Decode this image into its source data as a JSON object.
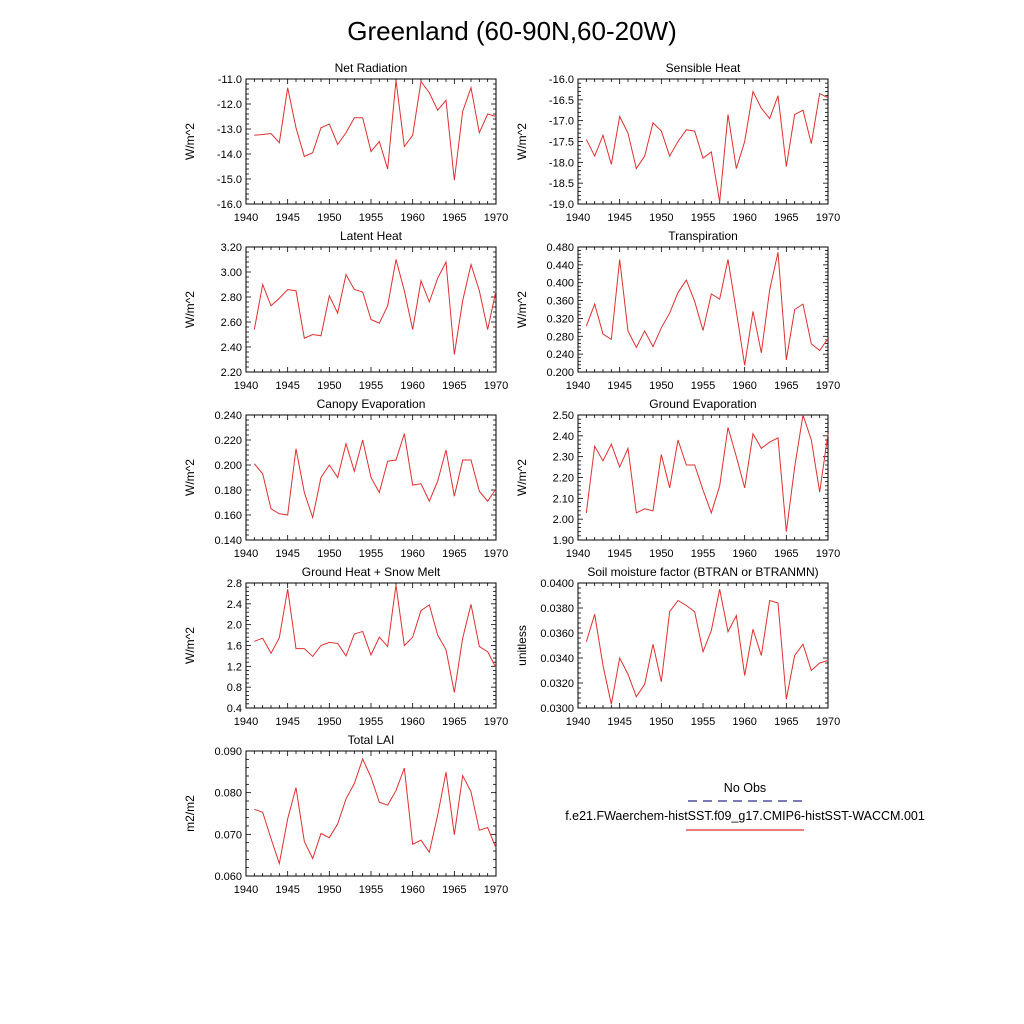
{
  "figure": {
    "title": "Greenland (60-90N,60-20W)"
  },
  "legend": {
    "entries": [
      {
        "label": "No Obs",
        "color": "#2a2a8f",
        "dash": "dashed"
      },
      {
        "label": "f.e21.FWaerchem-histSST.f09_g17.CMIP6-histSST-WACCM.001",
        "color": "#e03030",
        "dash": "solid"
      }
    ]
  },
  "chart_data": [
    {
      "type": "line",
      "title": "Net Radiation",
      "ylabel": "W/m^2",
      "xlim": [
        1940,
        1970
      ],
      "ylim": [
        -16.0,
        -11.0
      ],
      "xticks": [
        "1940",
        "1945",
        "1950",
        "1955",
        "1960",
        "1965",
        "1970"
      ],
      "yticks": [
        "-16.0",
        "-15.0",
        "-14.0",
        "-13.0",
        "-12.0",
        "-11.0"
      ],
      "x": [
        1941,
        1942,
        1943,
        1944,
        1945,
        1946,
        1947,
        1948,
        1949,
        1950,
        1951,
        1952,
        1953,
        1954,
        1955,
        1956,
        1957,
        1958,
        1959,
        1960,
        1961,
        1962,
        1963,
        1964,
        1965,
        1966,
        1967,
        1968,
        1969,
        1970
      ],
      "series": [
        {
          "color": "#e03030",
          "values": [
            -13.25,
            -13.22,
            -13.18,
            -13.55,
            -11.35,
            -12.95,
            -14.1,
            -13.95,
            -12.95,
            -12.8,
            -13.62,
            -13.15,
            -12.55,
            -12.55,
            -13.9,
            -13.5,
            -14.6,
            -11.05,
            -13.7,
            -13.25,
            -11.1,
            -11.55,
            -12.25,
            -11.85,
            -15.05,
            -12.3,
            -11.35,
            -13.15,
            -12.4,
            -12.5
          ]
        }
      ]
    },
    {
      "type": "line",
      "title": "Sensible Heat",
      "ylabel": "W/m^2",
      "xlim": [
        1940,
        1970
      ],
      "ylim": [
        -19.0,
        -16.0
      ],
      "xticks": [
        "1940",
        "1945",
        "1950",
        "1955",
        "1960",
        "1965",
        "1970"
      ],
      "yticks": [
        "-19.0",
        "-18.5",
        "-18.0",
        "-17.5",
        "-17.0",
        "-16.5",
        "-16.0"
      ],
      "x": [
        1941,
        1942,
        1943,
        1944,
        1945,
        1946,
        1947,
        1948,
        1949,
        1950,
        1951,
        1952,
        1953,
        1954,
        1955,
        1956,
        1957,
        1958,
        1959,
        1960,
        1961,
        1962,
        1963,
        1964,
        1965,
        1966,
        1967,
        1968,
        1969,
        1970
      ],
      "series": [
        {
          "color": "#e03030",
          "values": [
            -17.45,
            -17.85,
            -17.35,
            -18.05,
            -16.9,
            -17.3,
            -18.15,
            -17.85,
            -17.05,
            -17.25,
            -17.85,
            -17.5,
            -17.22,
            -17.25,
            -17.9,
            -17.75,
            -18.95,
            -16.85,
            -18.15,
            -17.5,
            -16.3,
            -16.7,
            -16.95,
            -16.4,
            -18.1,
            -16.85,
            -16.75,
            -17.55,
            -16.35,
            -16.45
          ]
        }
      ]
    },
    {
      "type": "line",
      "title": "Latent Heat",
      "ylabel": "W/m^2",
      "xlim": [
        1940,
        1970
      ],
      "ylim": [
        2.2,
        3.2
      ],
      "xticks": [
        "1940",
        "1945",
        "1950",
        "1955",
        "1960",
        "1965",
        "1970"
      ],
      "yticks": [
        "2.20",
        "2.40",
        "2.60",
        "2.80",
        "3.00",
        "3.20"
      ],
      "x": [
        1941,
        1942,
        1943,
        1944,
        1945,
        1946,
        1947,
        1948,
        1949,
        1950,
        1951,
        1952,
        1953,
        1954,
        1955,
        1956,
        1957,
        1958,
        1959,
        1960,
        1961,
        1962,
        1963,
        1964,
        1965,
        1966,
        1967,
        1968,
        1969,
        1970
      ],
      "series": [
        {
          "color": "#e03030",
          "values": [
            2.54,
            2.9,
            2.73,
            2.79,
            2.86,
            2.85,
            2.47,
            2.5,
            2.49,
            2.81,
            2.67,
            2.98,
            2.86,
            2.84,
            2.62,
            2.59,
            2.73,
            3.1,
            2.85,
            2.54,
            2.93,
            2.76,
            2.95,
            3.08,
            2.34,
            2.77,
            3.06,
            2.85,
            2.54,
            2.85
          ]
        }
      ]
    },
    {
      "type": "line",
      "title": "Transpiration",
      "ylabel": "W/m^2",
      "xlim": [
        1940,
        1970
      ],
      "ylim": [
        0.2,
        0.48
      ],
      "xticks": [
        "1940",
        "1945",
        "1950",
        "1955",
        "1960",
        "1965",
        "1970"
      ],
      "yticks": [
        "0.200",
        "0.240",
        "0.280",
        "0.320",
        "0.360",
        "0.400",
        "0.440",
        "0.480"
      ],
      "x": [
        1941,
        1942,
        1943,
        1944,
        1945,
        1946,
        1947,
        1948,
        1949,
        1950,
        1951,
        1952,
        1953,
        1954,
        1955,
        1956,
        1957,
        1958,
        1959,
        1960,
        1961,
        1962,
        1963,
        1964,
        1965,
        1966,
        1967,
        1968,
        1969,
        1970
      ],
      "series": [
        {
          "color": "#e03030",
          "values": [
            0.303,
            0.352,
            0.285,
            0.273,
            0.452,
            0.292,
            0.255,
            0.292,
            0.257,
            0.299,
            0.332,
            0.378,
            0.406,
            0.358,
            0.293,
            0.375,
            0.363,
            0.452,
            0.336,
            0.215,
            0.336,
            0.243,
            0.384,
            0.468,
            0.227,
            0.34,
            0.352,
            0.263,
            0.248,
            0.275
          ]
        }
      ]
    },
    {
      "type": "line",
      "title": "Canopy Evaporation",
      "ylabel": "W/m^2",
      "xlim": [
        1940,
        1970
      ],
      "ylim": [
        0.14,
        0.24
      ],
      "xticks": [
        "1940",
        "1945",
        "1950",
        "1955",
        "1960",
        "1965",
        "1970"
      ],
      "yticks": [
        "0.140",
        "0.160",
        "0.180",
        "0.200",
        "0.220",
        "0.240"
      ],
      "x": [
        1941,
        1942,
        1943,
        1944,
        1945,
        1946,
        1947,
        1948,
        1949,
        1950,
        1951,
        1952,
        1953,
        1954,
        1955,
        1956,
        1957,
        1958,
        1959,
        1960,
        1961,
        1962,
        1963,
        1964,
        1965,
        1966,
        1967,
        1968,
        1969,
        1970
      ],
      "series": [
        {
          "color": "#e03030",
          "values": [
            0.201,
            0.193,
            0.165,
            0.161,
            0.16,
            0.213,
            0.178,
            0.158,
            0.19,
            0.2,
            0.19,
            0.217,
            0.195,
            0.22,
            0.19,
            0.178,
            0.203,
            0.204,
            0.225,
            0.184,
            0.185,
            0.171,
            0.187,
            0.212,
            0.175,
            0.204,
            0.204,
            0.179,
            0.171,
            0.181
          ]
        }
      ]
    },
    {
      "type": "line",
      "title": "Ground Evaporation",
      "ylabel": "W/m^2",
      "xlim": [
        1940,
        1970
      ],
      "ylim": [
        1.9,
        2.5
      ],
      "xticks": [
        "1940",
        "1945",
        "1950",
        "1955",
        "1960",
        "1965",
        "1970"
      ],
      "yticks": [
        "1.90",
        "2.00",
        "2.10",
        "2.20",
        "2.30",
        "2.40",
        "2.50"
      ],
      "x": [
        1941,
        1942,
        1943,
        1944,
        1945,
        1946,
        1947,
        1948,
        1949,
        1950,
        1951,
        1952,
        1953,
        1954,
        1955,
        1956,
        1957,
        1958,
        1959,
        1960,
        1961,
        1962,
        1963,
        1964,
        1965,
        1966,
        1967,
        1968,
        1969,
        1970
      ],
      "series": [
        {
          "color": "#e03030",
          "values": [
            2.03,
            2.35,
            2.28,
            2.36,
            2.25,
            2.34,
            2.03,
            2.05,
            2.04,
            2.31,
            2.15,
            2.38,
            2.26,
            2.26,
            2.14,
            2.03,
            2.16,
            2.44,
            2.3,
            2.15,
            2.41,
            2.34,
            2.37,
            2.39,
            1.94,
            2.25,
            2.5,
            2.38,
            2.13,
            2.41
          ]
        }
      ]
    },
    {
      "type": "line",
      "title": "Ground Heat + Snow Melt",
      "ylabel": "W/m^2",
      "xlim": [
        1940,
        1970
      ],
      "ylim": [
        0.4,
        2.8
      ],
      "xticks": [
        "1940",
        "1945",
        "1950",
        "1955",
        "1960",
        "1965",
        "1970"
      ],
      "yticks": [
        "0.4",
        "0.8",
        "1.2",
        "1.6",
        "2.0",
        "2.4",
        "2.8"
      ],
      "x": [
        1941,
        1942,
        1943,
        1944,
        1945,
        1946,
        1947,
        1948,
        1949,
        1950,
        1951,
        1952,
        1953,
        1954,
        1955,
        1956,
        1957,
        1958,
        1959,
        1960,
        1961,
        1962,
        1963,
        1964,
        1965,
        1966,
        1967,
        1968,
        1969,
        1970
      ],
      "series": [
        {
          "color": "#e03030",
          "values": [
            1.68,
            1.74,
            1.45,
            1.75,
            2.68,
            1.54,
            1.54,
            1.39,
            1.6,
            1.66,
            1.64,
            1.4,
            1.82,
            1.87,
            1.42,
            1.76,
            1.58,
            2.76,
            1.6,
            1.76,
            2.27,
            2.38,
            1.8,
            1.52,
            0.7,
            1.74,
            2.39,
            1.58,
            1.48,
            1.17
          ]
        }
      ]
    },
    {
      "type": "line",
      "title": "Soil moisture factor (BTRAN or BTRANMN)",
      "ylabel": "unitless",
      "xlim": [
        1940,
        1970
      ],
      "ylim": [
        0.03,
        0.04
      ],
      "xticks": [
        "1940",
        "1945",
        "1950",
        "1955",
        "1960",
        "1965",
        "1970"
      ],
      "yticks": [
        "0.0300",
        "0.0320",
        "0.0340",
        "0.0360",
        "0.0380",
        "0.0400"
      ],
      "x": [
        1941,
        1942,
        1943,
        1944,
        1945,
        1946,
        1947,
        1948,
        1949,
        1950,
        1951,
        1952,
        1953,
        1954,
        1955,
        1956,
        1957,
        1958,
        1959,
        1960,
        1961,
        1962,
        1963,
        1964,
        1965,
        1966,
        1967,
        1968,
        1969,
        1970
      ],
      "series": [
        {
          "color": "#e03030",
          "values": [
            0.0353,
            0.0375,
            0.0334,
            0.0303,
            0.034,
            0.0327,
            0.0309,
            0.0319,
            0.0351,
            0.0321,
            0.0377,
            0.0386,
            0.0382,
            0.0377,
            0.0345,
            0.0362,
            0.0395,
            0.0361,
            0.0374,
            0.0326,
            0.0363,
            0.0342,
            0.0386,
            0.0384,
            0.0307,
            0.0342,
            0.0351,
            0.033,
            0.0336,
            0.0338
          ]
        }
      ]
    },
    {
      "type": "line",
      "title": "Total LAI",
      "ylabel": "m2/m2",
      "xlim": [
        1940,
        1970
      ],
      "ylim": [
        0.06,
        0.09
      ],
      "xticks": [
        "1940",
        "1945",
        "1950",
        "1955",
        "1960",
        "1965",
        "1970"
      ],
      "yticks": [
        "0.060",
        "0.070",
        "0.080",
        "0.090"
      ],
      "x": [
        1941,
        1942,
        1943,
        1944,
        1945,
        1946,
        1947,
        1948,
        1949,
        1950,
        1951,
        1952,
        1953,
        1954,
        1955,
        1956,
        1957,
        1958,
        1959,
        1960,
        1961,
        1962,
        1963,
        1964,
        1965,
        1966,
        1967,
        1968,
        1969,
        1970
      ],
      "series": [
        {
          "color": "#e03030",
          "values": [
            0.076,
            0.0753,
            0.069,
            0.063,
            0.0737,
            0.0812,
            0.0683,
            0.0642,
            0.0702,
            0.0692,
            0.0725,
            0.0785,
            0.0822,
            0.0881,
            0.0837,
            0.0777,
            0.077,
            0.0805,
            0.0859,
            0.0676,
            0.0686,
            0.0657,
            0.0746,
            0.0849,
            0.0699,
            0.0841,
            0.0802,
            0.071,
            0.0716,
            0.0667
          ]
        }
      ]
    }
  ]
}
